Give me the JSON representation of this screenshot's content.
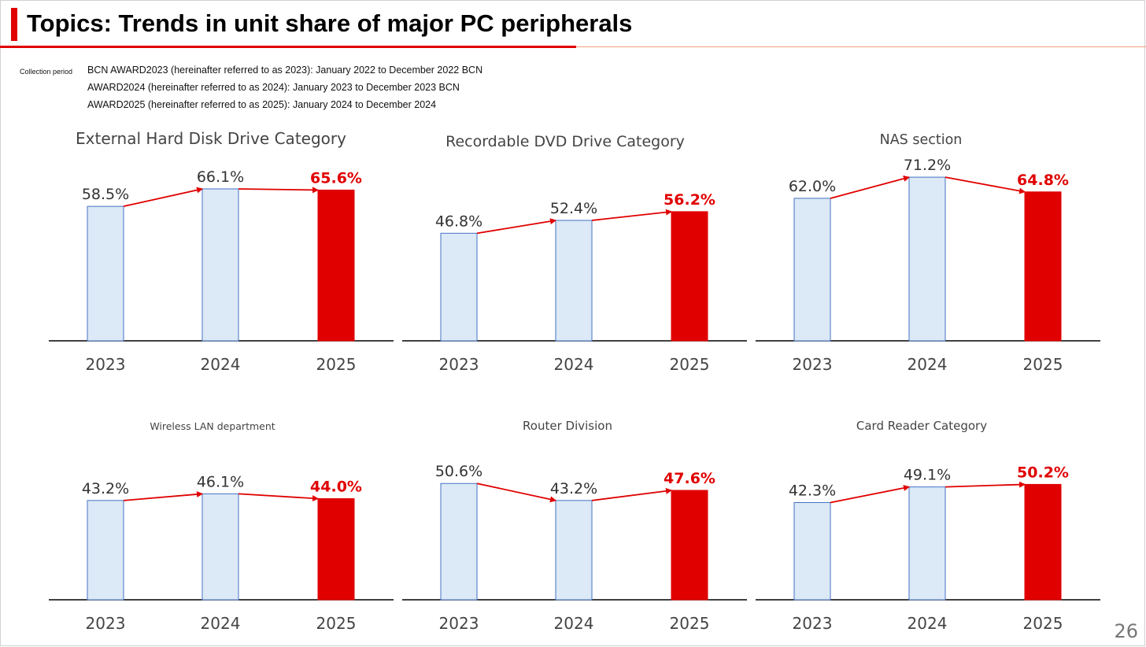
{
  "header": {
    "title": "Topics: Trends in unit share of major PC peripherals"
  },
  "collection": {
    "label": "Collection period",
    "lines": [
      "BCN AWARD2023 (hereinafter referred to as 2023): January 2022 to December 2022 BCN",
      "AWARD2024 (hereinafter referred to as 2024): January 2023 to December 2023 BCN",
      "AWARD2025 (hereinafter referred to as 2025): January 2024 to December 2024"
    ]
  },
  "page_number": "26",
  "colors": {
    "bar_past": "#dce9f6",
    "bar_past_border": "#4472c4",
    "bar_current": "#e00000",
    "arrow": "#e00000",
    "label_current": "#e00000",
    "label_past": "#333333"
  },
  "chart_data": [
    {
      "type": "bar",
      "title": "External Hard Disk Drive Category",
      "categories": [
        "2023",
        "2024",
        "2025"
      ],
      "values": [
        58.5,
        66.1,
        65.6
      ],
      "labels": [
        "58.5%",
        "66.1%",
        "65.6%"
      ]
    },
    {
      "type": "bar",
      "title": "Recordable DVD Drive Category",
      "categories": [
        "2023",
        "2024",
        "2025"
      ],
      "values": [
        46.8,
        52.4,
        56.2
      ],
      "labels": [
        "46.8%",
        "52.4%",
        "56.2%"
      ]
    },
    {
      "type": "bar",
      "title": "NAS section",
      "categories": [
        "2023",
        "2024",
        "2025"
      ],
      "values": [
        62.0,
        71.2,
        64.8
      ],
      "labels": [
        "62.0%",
        "71.2%",
        "64.8%"
      ]
    },
    {
      "type": "bar",
      "title": "Wireless LAN department",
      "categories": [
        "2023",
        "2024",
        "2025"
      ],
      "values": [
        43.2,
        46.1,
        44.0
      ],
      "labels": [
        "43.2%",
        "46.1%",
        "44.0%"
      ]
    },
    {
      "type": "bar",
      "title": "Router Division",
      "categories": [
        "2023",
        "2024",
        "2025"
      ],
      "values": [
        50.6,
        43.2,
        47.6
      ],
      "labels": [
        "50.6%",
        "43.2%",
        "47.6%"
      ]
    },
    {
      "type": "bar",
      "title": "Card Reader Category",
      "categories": [
        "2023",
        "2024",
        "2025"
      ],
      "values": [
        42.3,
        49.1,
        50.2
      ],
      "labels": [
        "42.3%",
        "49.1%",
        "50.2%"
      ]
    }
  ]
}
